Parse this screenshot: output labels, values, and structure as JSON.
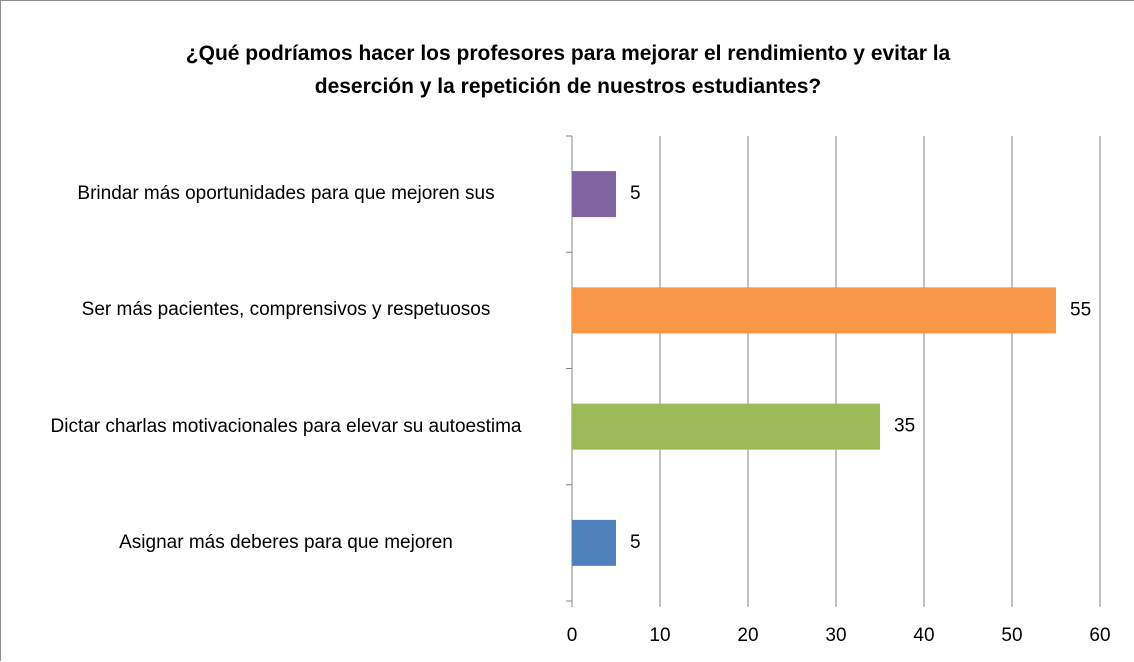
{
  "chart_data": {
    "type": "bar",
    "orientation": "horizontal",
    "title": "¿Qué podríamos hacer los profesores para mejorar el rendimiento y evitar la deserción y la repetición de nuestros estudiantes?",
    "categories": [
      "Asignar más deberes para que mejoren",
      "Dictar charlas motivacionales para elevar su autoestima",
      "Ser más pacientes, comprensivos y respetuosos",
      "Brindar más oportunidades para que mejoren sus"
    ],
    "values": [
      5,
      35,
      55,
      5
    ],
    "colors": [
      "#4f81bd",
      "#9bbb59",
      "#f79646",
      "#8064a2"
    ],
    "xlim": [
      0,
      60
    ],
    "xticks": [
      0,
      10,
      20,
      30,
      40,
      50,
      60
    ],
    "grid": true
  }
}
